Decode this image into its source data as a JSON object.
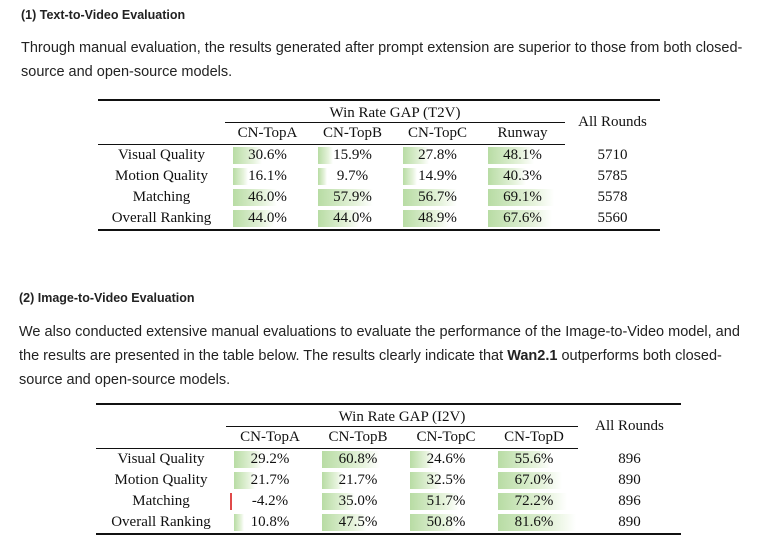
{
  "section1": {
    "heading": "(1) Text-to-Video Evaluation",
    "paragraph": "Through manual evaluation, the results generated after prompt extension are superior to those from both closed-source and open-source models.",
    "table": {
      "group_header": "Win Rate GAP (T2V)",
      "all_rounds_header": "All Rounds",
      "columns": [
        "CN-TopA",
        "CN-TopB",
        "CN-TopC",
        "Runway"
      ],
      "rows": [
        {
          "label": "Visual Quality",
          "values": [
            "30.6%",
            "15.9%",
            "27.8%",
            "48.1%"
          ],
          "bars": [
            30.6,
            15.9,
            27.8,
            48.1
          ],
          "rounds": "5710"
        },
        {
          "label": "Motion Quality",
          "values": [
            "16.1%",
            "9.7%",
            "14.9%",
            "40.3%"
          ],
          "bars": [
            16.1,
            9.7,
            14.9,
            40.3
          ],
          "rounds": "5785"
        },
        {
          "label": "Matching",
          "values": [
            "46.0%",
            "57.9%",
            "56.7%",
            "69.1%"
          ],
          "bars": [
            46.0,
            57.9,
            56.7,
            69.1
          ],
          "rounds": "5578"
        },
        {
          "label": "Overall Ranking",
          "values": [
            "44.0%",
            "44.0%",
            "48.9%",
            "67.6%"
          ],
          "bars": [
            44.0,
            44.0,
            48.9,
            67.6
          ],
          "rounds": "5560"
        }
      ]
    }
  },
  "section2": {
    "heading": "(2) Image-to-Video Evaluation",
    "paragraph_pre": "We also conducted extensive manual evaluations to evaluate the performance of the Image-to-Video model, and the results are presented in the table below. The results clearly indicate that ",
    "paragraph_bold": "Wan2.1",
    "paragraph_post": " outperforms both closed-source and open-source models.",
    "table": {
      "group_header": "Win Rate GAP (I2V)",
      "all_rounds_header": "All Rounds",
      "columns": [
        "CN-TopA",
        "CN-TopB",
        "CN-TopC",
        "CN-TopD"
      ],
      "rows": [
        {
          "label": "Visual Quality",
          "values": [
            "29.2%",
            "60.8%",
            "24.6%",
            "55.6%"
          ],
          "bars": [
            29.2,
            60.8,
            24.6,
            55.6
          ],
          "rounds": "896"
        },
        {
          "label": "Motion Quality",
          "values": [
            "21.7%",
            "21.7%",
            "32.5%",
            "67.0%"
          ],
          "bars": [
            21.7,
            21.7,
            32.5,
            67.0
          ],
          "rounds": "890"
        },
        {
          "label": "Matching",
          "values": [
            "-4.2%",
            "35.0%",
            "51.7%",
            "72.2%"
          ],
          "bars": [
            -4.2,
            35.0,
            51.7,
            72.2
          ],
          "rounds": "896"
        },
        {
          "label": "Overall Ranking",
          "values": [
            "10.8%",
            "47.5%",
            "50.8%",
            "81.6%"
          ],
          "bars": [
            10.8,
            47.5,
            50.8,
            81.6
          ],
          "rounds": "890"
        }
      ]
    }
  }
}
